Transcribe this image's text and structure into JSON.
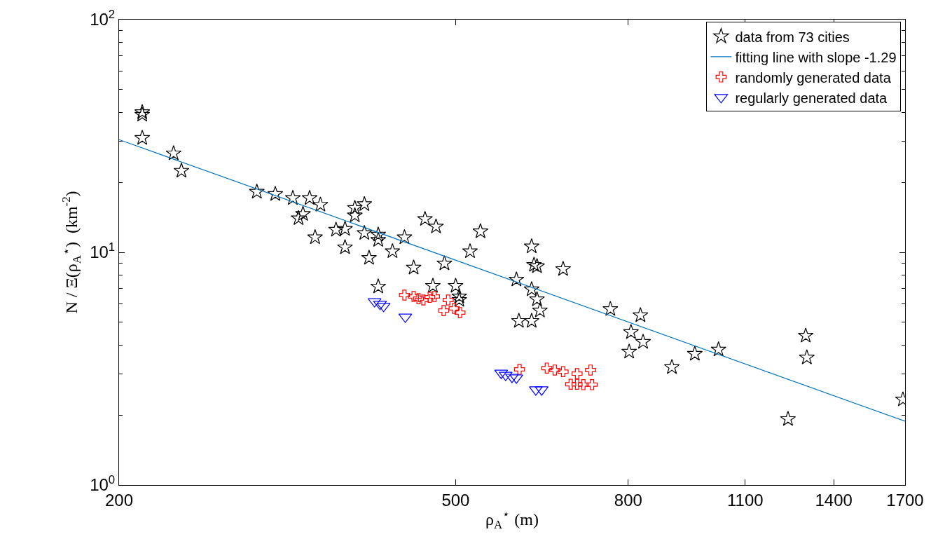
{
  "chart_data": {
    "type": "scatter",
    "xlabel": "ρ$_{A}$$^{⋆}$ (m)",
    "ylabel": "N / Ξ(ρ$_{A}$$^{⋆}$)  (km$^{-2}$)",
    "log": "xy",
    "grid": false,
    "legend": "top right",
    "xlim": [
      200,
      1700
    ],
    "xticks": [
      200,
      500,
      800,
      1100,
      1400,
      1700
    ],
    "ylim": [
      1,
      100
    ],
    "yticks": [
      {
        "value": 1,
        "label": "10$^{0}$"
      },
      {
        "value": 10,
        "label": "10$^{1}$"
      },
      {
        "value": 100,
        "label": "10$^{2}$"
      }
    ],
    "series": [
      {
        "name": "data from 73 cities",
        "marker": "star",
        "color": "#000000",
        "x": [
          213,
          213,
          213,
          232,
          237,
          291,
          306,
          321,
          336,
          346,
          330,
          326,
          341,
          361,
          370,
          370,
          380,
          380,
          390,
          390,
          395,
          405,
          405,
          405,
          421,
          435,
          446,
          460,
          474,
          485,
          470,
          500,
          505,
          505,
          535,
          520,
          615,
          619,
          624,
          670,
          590,
          615,
          624,
          629,
          594,
          615,
          762,
          827,
          806,
          833,
          802,
          901,
          959,
          1023,
          1297,
          1301,
          1236,
          1690
        ],
        "values": [
          40,
          39,
          31,
          26.6,
          22.4,
          18.2,
          17.8,
          17.1,
          17.1,
          16,
          14.6,
          14,
          11.6,
          12.5,
          12.6,
          10.5,
          15.5,
          14.4,
          16.1,
          12.1,
          9.46,
          11.9,
          11.3,
          7.12,
          10.1,
          11.6,
          8.59,
          13.9,
          12.9,
          8.95,
          7.17,
          7.17,
          6.46,
          6.24,
          12.3,
          10.1,
          10.6,
          8.83,
          8.71,
          8.47,
          7.63,
          6.93,
          6.28,
          5.62,
          5.07,
          5.07,
          5.7,
          5.36,
          4.54,
          4.12,
          3.74,
          3.21,
          3.66,
          3.82,
          4.38,
          3.53,
          1.92,
          2.33
        ]
      },
      {
        "name": "fitting line with slope -1.29",
        "type": "line",
        "marker": "none",
        "line_style": "solid",
        "color": "#0072bd",
        "x": [
          200,
          1700
        ],
        "values": [
          30.5,
          1.88
        ]
      },
      {
        "name": "randomly generated data",
        "marker": "cross",
        "color": "#ff0000",
        "x": [
          435,
          446,
          452,
          458,
          466,
          472,
          490,
          484,
          506,
          498,
          595,
          641,
          655,
          670,
          696,
          722,
          684,
          696,
          708,
          725
        ],
        "values": [
          6.55,
          6.46,
          6.33,
          6.24,
          6.41,
          6.46,
          6.24,
          5.62,
          5.51,
          5.74,
          3.14,
          3.18,
          3.12,
          3.07,
          3.01,
          3.12,
          2.71,
          2.71,
          2.7,
          2.7
        ]
      },
      {
        "name": "regularly generated data",
        "marker": "triangle",
        "color": "#0000ff",
        "x": [
          401,
          407,
          411,
          436,
          566,
          573,
          583,
          590,
          622,
          632
        ],
        "values": [
          6.15,
          5.99,
          5.87,
          5.28,
          3.03,
          2.97,
          2.91,
          2.89,
          2.57,
          2.57
        ]
      }
    ]
  }
}
